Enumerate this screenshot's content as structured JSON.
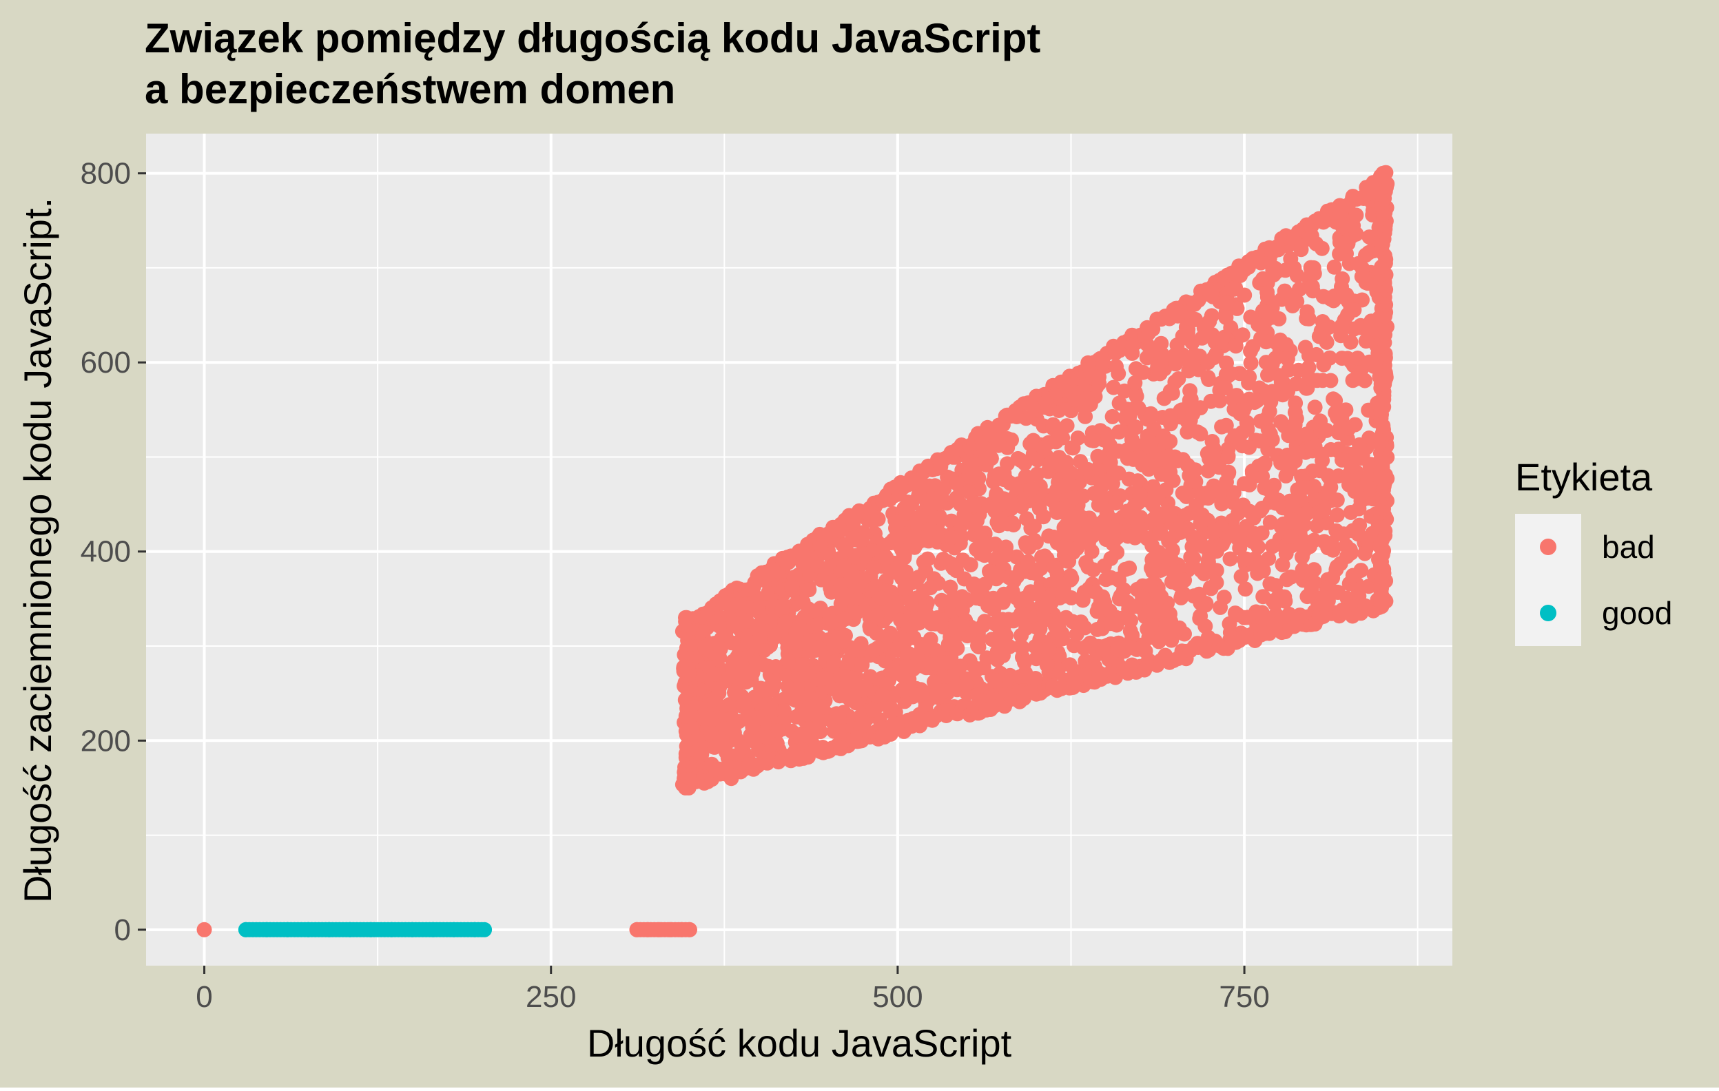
{
  "chart_data": {
    "type": "scatter",
    "title_lines": [
      "Związek pomiędzy długością kodu JavaScript",
      "a bezpieczeństwem domen"
    ],
    "xlabel": "Długość kodu JavaScript",
    "ylabel": "Długość zaciemnionego kodu JavaScript.",
    "xlim": [
      -42,
      900
    ],
    "ylim": [
      -38,
      842
    ],
    "x_ticks": [
      0,
      250,
      500,
      750
    ],
    "x_tick_labels": [
      "0",
      "250",
      "500",
      "750"
    ],
    "y_ticks": [
      0,
      200,
      400,
      600,
      800
    ],
    "y_tick_labels": [
      "0",
      "200",
      "400",
      "600",
      "800"
    ],
    "grid": true,
    "legend": {
      "title": "Etykieta",
      "position": "right",
      "entries": [
        {
          "label": "bad",
          "color": "#F8766D"
        },
        {
          "label": "good",
          "color": "#00BFC4"
        }
      ]
    },
    "colors": {
      "page_background": "#D8D8C4",
      "panel_background": "#EBEBEB",
      "grid": "#FFFFFF",
      "bad": "#F8766D",
      "good": "#00BFC4"
    },
    "series": [
      {
        "name": "bad",
        "color": "#F8766D",
        "points": [
          [
            0,
            0
          ],
          [
            312,
            0
          ],
          [
            320,
            0
          ],
          [
            328,
            0
          ],
          [
            336,
            0
          ],
          [
            344,
            0
          ],
          [
            350,
            0
          ],
          [
            347,
            150
          ],
          [
            347,
            330
          ],
          [
            850,
            345
          ],
          [
            850,
            800
          ],
          [
            600,
            560
          ],
          [
            500,
            420
          ],
          [
            400,
            350
          ],
          [
            700,
            500
          ],
          [
            750,
            330
          ],
          [
            800,
            700
          ],
          [
            650,
            300
          ],
          [
            550,
            250
          ],
          [
            450,
            190
          ],
          [
            380,
            160
          ],
          [
            420,
            280
          ],
          [
            480,
            330
          ],
          [
            520,
            380
          ],
          [
            580,
            430
          ],
          [
            620,
            470
          ],
          [
            680,
            540
          ],
          [
            720,
            600
          ],
          [
            760,
            640
          ],
          [
            820,
            680
          ],
          [
            840,
            520
          ],
          [
            790,
            420
          ],
          [
            730,
            380
          ],
          [
            660,
            350
          ],
          [
            600,
            320
          ],
          [
            540,
            300
          ],
          [
            470,
            240
          ],
          [
            400,
            200
          ],
          [
            360,
            230
          ],
          [
            370,
            300
          ],
          [
            430,
            320
          ],
          [
            500,
            280
          ],
          [
            560,
            350
          ],
          [
            640,
            400
          ],
          [
            700,
            440
          ],
          [
            780,
            480
          ],
          [
            830,
            600
          ],
          [
            810,
            760
          ],
          [
            770,
            720
          ],
          [
            740,
            660
          ],
          [
            690,
            620
          ],
          [
            630,
            520
          ],
          [
            570,
            480
          ],
          [
            510,
            450
          ],
          [
            450,
            400
          ]
        ]
      },
      {
        "name": "good",
        "color": "#00BFC4",
        "points": [
          [
            30,
            0
          ],
          [
            45,
            0
          ],
          [
            60,
            0
          ],
          [
            75,
            0
          ],
          [
            90,
            0
          ],
          [
            105,
            0
          ],
          [
            120,
            0
          ],
          [
            135,
            0
          ],
          [
            150,
            0
          ],
          [
            165,
            0
          ],
          [
            180,
            0
          ],
          [
            195,
            0
          ],
          [
            202,
            0
          ]
        ]
      }
    ]
  }
}
